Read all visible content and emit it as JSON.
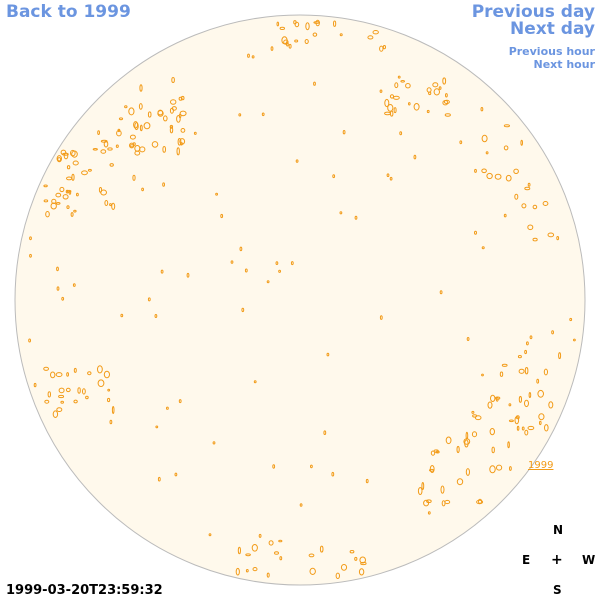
{
  "nav": {
    "back_label": "Back to 1999",
    "previous_day_label": "Previous day",
    "next_day_label": "Next day",
    "previous_hour_label": "Previous hour",
    "next_hour_label": "Next hour"
  },
  "sun": {
    "disk_fill": "#fff9ec",
    "disk_stroke": "#bbbbbb",
    "contour_color": "#f29b18"
  },
  "region": {
    "label": "1999"
  },
  "compass": {
    "north": "N",
    "east": "E",
    "center": "+",
    "west": "W",
    "south": "S"
  },
  "timestamp": "1999-03-20T23:59:32"
}
